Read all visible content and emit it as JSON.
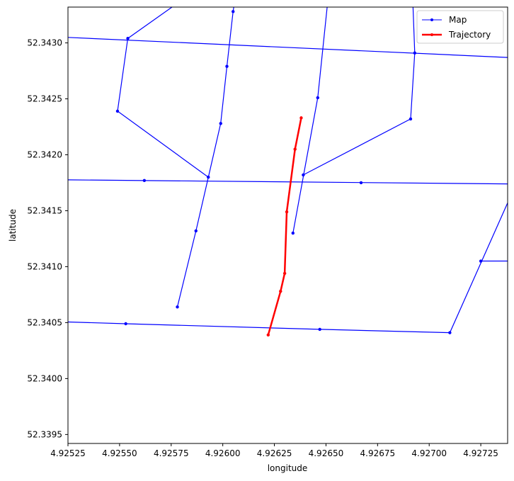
{
  "chart_data": {
    "type": "line",
    "xlabel": "longitude",
    "ylabel": "latitude",
    "xlim": [
      4.92525,
      4.92738
    ],
    "ylim": [
      52.33942,
      52.34332
    ],
    "xticks": [
      4.92525,
      4.9255,
      4.92575,
      4.926,
      4.92625,
      4.9265,
      4.92675,
      4.927,
      4.92725
    ],
    "xtick_labels": [
      "4.92525",
      "4.92550",
      "4.92575",
      "4.92600",
      "4.92625",
      "4.92650",
      "4.92675",
      "4.92700",
      "4.92725"
    ],
    "yticks": [
      52.3395,
      52.34,
      52.3405,
      52.341,
      52.3415,
      52.342,
      52.3425,
      52.343
    ],
    "ytick_labels": [
      "52.3395",
      "52.3400",
      "52.3405",
      "52.3410",
      "52.3415",
      "52.3420",
      "52.3425",
      "52.3430"
    ],
    "grid": false,
    "legend": {
      "position": "top-right",
      "entries": [
        "Map",
        "Trajectory"
      ]
    },
    "colors": {
      "map": "#0000ff",
      "trajectory": "#ff0000",
      "frame": "#000000",
      "legend_border": "#cccccc"
    },
    "series": [
      {
        "name": "Map",
        "segments": [
          {
            "x": [
              4.925,
              4.92738
            ],
            "y": [
              52.34307,
              52.34287
            ]
          },
          {
            "x": [
              4.925,
              4.92738
            ],
            "y": [
              52.34178,
              52.34174
            ]
          },
          {
            "x": [
              4.925,
              4.92553,
              4.92647,
              4.9271,
              4.92738
            ],
            "y": [
              52.34052,
              52.34049,
              52.34044,
              52.34041,
              52.34157
            ]
          },
          {
            "x": [
              4.92725,
              4.92738
            ],
            "y": [
              52.34105,
              52.34105
            ]
          },
          {
            "x": [
              4.92578,
              4.92587,
              4.92593,
              4.92549,
              4.92554,
              4.9258
            ],
            "y": [
              52.34064,
              52.34132,
              52.3418,
              52.34239,
              52.34304,
              52.34338
            ]
          },
          {
            "x": [
              4.92593,
              4.92599,
              4.92602,
              4.92605,
              4.92606
            ],
            "y": [
              52.3418,
              52.34228,
              52.34279,
              52.34328,
              52.3434
            ]
          },
          {
            "x": [
              4.92634,
              4.92646,
              4.92651
            ],
            "y": [
              52.3413,
              52.34251,
              52.3434
            ]
          },
          {
            "x": [
              4.92639,
              4.92691,
              4.92693,
              4.92692
            ],
            "y": [
              52.34182,
              52.34232,
              52.34291,
              52.3434
            ]
          }
        ],
        "markers": [
          {
            "x": 4.92554,
            "y": 52.34304
          },
          {
            "x": 4.92549,
            "y": 52.34239
          },
          {
            "x": 4.92593,
            "y": 52.3418
          },
          {
            "x": 4.92587,
            "y": 52.34132
          },
          {
            "x": 4.92578,
            "y": 52.34064
          },
          {
            "x": 4.92599,
            "y": 52.34228
          },
          {
            "x": 4.92602,
            "y": 52.34279
          },
          {
            "x": 4.92605,
            "y": 52.34328
          },
          {
            "x": 4.92646,
            "y": 52.34251
          },
          {
            "x": 4.92639,
            "y": 52.34182
          },
          {
            "x": 4.92634,
            "y": 52.3413
          },
          {
            "x": 4.92691,
            "y": 52.34232
          },
          {
            "x": 4.92693,
            "y": 52.34291
          },
          {
            "x": 4.92562,
            "y": 52.34177
          },
          {
            "x": 4.92667,
            "y": 52.34175
          },
          {
            "x": 4.92553,
            "y": 52.34049
          },
          {
            "x": 4.92647,
            "y": 52.34044
          },
          {
            "x": 4.9271,
            "y": 52.34041
          },
          {
            "x": 4.92725,
            "y": 52.34105
          }
        ]
      },
      {
        "name": "Trajectory",
        "x": [
          4.92622,
          4.92628,
          4.9263,
          4.92631,
          4.92635,
          4.92638
        ],
        "y": [
          52.34039,
          52.34078,
          52.34094,
          52.34149,
          52.34205,
          52.34233
        ]
      }
    ]
  }
}
